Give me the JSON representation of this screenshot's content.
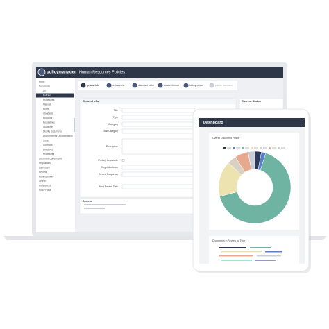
{
  "app": {
    "brand": "policymanager",
    "page_title": "Human Resources Policies"
  },
  "sidebar": [
    "Home",
    "Documents",
    "All",
    "Policies",
    "Procedures",
    "Manuals",
    "Forms",
    "Standards",
    "Protocols",
    "Regulations",
    "Guidelines",
    "Quality Documents",
    "Environmental Documentation",
    "Codes",
    "Contracts",
    "Directives",
    "Procedures",
    "Document Components",
    "Regulations",
    "Dashboard",
    "Reports",
    "Administration",
    "Search",
    "Preferences",
    "Policy Portal"
  ],
  "steps": [
    "general info",
    "review cycle",
    "document editor",
    "cross-reference",
    "history viewer",
    "publish document"
  ],
  "form": {
    "section": "General Info",
    "status_section": "Current Status",
    "fields": [
      "Title",
      "Type",
      "Category",
      "Sub Category",
      "Description",
      "Publicly Accessible",
      "Target Audience",
      "Review Frequency",
      "Next Review Date"
    ],
    "access": "Access"
  },
  "dashboard": {
    "title": "Dashboard",
    "chart_title": "Overall Document Profile",
    "chart": {
      "type": "pie",
      "values": [
        3,
        2,
        66,
        16,
        4,
        6,
        3
      ],
      "colors": [
        "#2d3a5a",
        "#5b7fc7",
        "#6fb3a3",
        "#ece3b0",
        "#d9d2c4",
        "#e7a98e",
        "#c9ced6"
      ]
    },
    "bar_title": "Documents in Review by Type"
  }
}
